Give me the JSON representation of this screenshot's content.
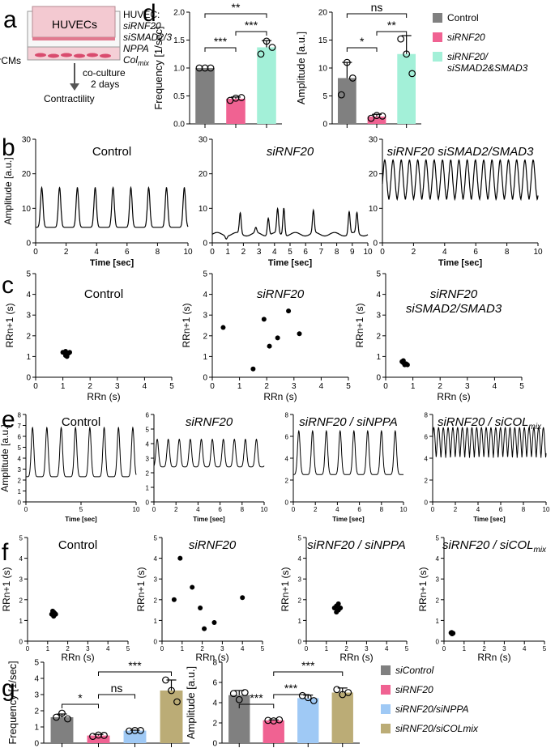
{
  "colors": {
    "control": "#808080",
    "sirnf20": "#f06292",
    "smad": "#a3f0d8",
    "nppa": "#9fc9f5",
    "colmix": "#bbac76"
  },
  "panel_labels": {
    "a": "a",
    "b": "b",
    "c": "c",
    "d": "d",
    "e": "e",
    "f": "f",
    "g": "g"
  },
  "schematic": {
    "cells_label": "HUVECs",
    "rcm_label": "rCMs",
    "huvec_header": "HUVEC:",
    "huvec_items": [
      "siRNF20",
      "siSMAD2/3",
      "NPPA",
      "Col"
    ],
    "col_subscript": "mix",
    "coculture_line1": "co-culture",
    "coculture_line2": "2 days",
    "contractility": "Contractility"
  },
  "chart_data": [
    {
      "id": "d-frequency",
      "type": "bar",
      "categories": [
        "Control",
        "siRNF20",
        "siRNF20/siSMAD2&SMAD3"
      ],
      "values": [
        1.0,
        0.45,
        1.37
      ],
      "errors": [
        0.0,
        0.03,
        0.12
      ],
      "points": [
        [
          1.0,
          1.0,
          1.0
        ],
        [
          0.42,
          0.46,
          0.47
        ],
        [
          1.25,
          1.48,
          1.37
        ]
      ],
      "ylabel": "Frequency [1/sec]",
      "ylim": [
        0,
        2.0
      ],
      "yticks": [
        "0.0",
        "0.5",
        "1.0",
        "1.5",
        "2.0"
      ],
      "significance": [
        {
          "pair": [
            0,
            1
          ],
          "label": "***"
        },
        {
          "pair": [
            1,
            2
          ],
          "label": "***"
        },
        {
          "pair": [
            0,
            2
          ],
          "label": "**"
        }
      ]
    },
    {
      "id": "d-amplitude",
      "type": "bar",
      "categories": [
        "Control",
        "siRNF20",
        "siRNF20/siSMAD2&SMAD3"
      ],
      "values": [
        8.2,
        1.3,
        12.5
      ],
      "errors": [
        2.8,
        0.4,
        3.3
      ],
      "points": [
        [
          5.2,
          11.0,
          8.2
        ],
        [
          1.0,
          1.5,
          1.4
        ],
        [
          15.2,
          12.5,
          9.0
        ]
      ],
      "ylabel": "Amplitude [a.u.]",
      "ylim": [
        0,
        20
      ],
      "yticks": [
        "0",
        "5",
        "10",
        "15",
        "20"
      ],
      "significance": [
        {
          "pair": [
            0,
            1
          ],
          "label": "*"
        },
        {
          "pair": [
            1,
            2
          ],
          "label": "**"
        },
        {
          "pair": [
            0,
            2
          ],
          "label": "ns"
        }
      ]
    },
    {
      "id": "b-control",
      "type": "line",
      "title": "Control",
      "xlabel": "Time [sec]",
      "ylabel": "Amplitude [a.u.]",
      "xlim": [
        0,
        10
      ],
      "ylim": [
        0,
        30
      ],
      "xticks": [
        "0",
        "2",
        "4",
        "6",
        "8",
        "10"
      ],
      "yticks": [
        "0",
        "10",
        "20",
        "30"
      ],
      "wave": {
        "base": 4.5,
        "peak": 16,
        "period": 1.17,
        "phase": 0.4,
        "width": 0.14
      }
    },
    {
      "id": "b-sirnf20",
      "type": "line",
      "title": "siRNF20",
      "xlabel": "Time [sec]",
      "ylabel": "",
      "xlim": [
        0,
        10
      ],
      "ylim": [
        0,
        30
      ],
      "xticks": [
        "0",
        "1",
        "2",
        "3",
        "4",
        "5",
        "6",
        "7",
        "8",
        "9",
        "10"
      ],
      "yticks": [
        "0",
        "10",
        "20",
        "30"
      ],
      "peaks": [
        [
          0.9,
          1.6
        ],
        [
          1.8,
          8.5
        ],
        [
          2.8,
          4.0
        ],
        [
          3.6,
          7.5
        ],
        [
          4.2,
          9.5
        ],
        [
          4.6,
          10.5
        ],
        [
          6.5,
          9.0
        ],
        [
          8.8,
          9.0
        ],
        [
          9.3,
          8.5
        ]
      ],
      "base": 2.5
    },
    {
      "id": "b-smad",
      "type": "line",
      "title": "siRNF20 siSMAD2/SMAD3",
      "xlabel": "Time [sec]",
      "ylabel": "",
      "xlim": [
        0,
        10
      ],
      "ylim": [
        0,
        30
      ],
      "xticks": [
        "0",
        "2",
        "4",
        "6",
        "8",
        "10"
      ],
      "yticks": [
        "0",
        "10",
        "20",
        "30"
      ],
      "wave": {
        "base": 11.5,
        "peak": 24,
        "period": 0.53,
        "phase": 0.15,
        "width": 0.2
      }
    },
    {
      "id": "c-control",
      "type": "scatter",
      "title": "Control",
      "xlabel": "RRn (s)",
      "ylabel": "RRn+1 (s)",
      "xlim": [
        0,
        5
      ],
      "ylim": [
        0,
        5
      ],
      "ticks": [
        "0",
        "1",
        "2",
        "3",
        "4",
        "5"
      ],
      "x": [
        1.0,
        1.1,
        1.2,
        1.1,
        1.25,
        1.15
      ],
      "y": [
        1.2,
        1.05,
        1.15,
        1.25,
        1.2,
        1.0
      ]
    },
    {
      "id": "c-sirnf20",
      "type": "scatter",
      "title": "siRNF20",
      "xlabel": "RRn (s)",
      "ylabel": "RRn+1 (s)",
      "xlim": [
        0,
        5
      ],
      "ylim": [
        0,
        5
      ],
      "ticks": [
        "0",
        "1",
        "2",
        "3",
        "4",
        "5"
      ],
      "x": [
        0.4,
        1.5,
        1.9,
        2.1,
        2.4,
        2.8,
        3.2
      ],
      "y": [
        2.4,
        0.4,
        2.8,
        1.5,
        1.9,
        3.2,
        2.1
      ]
    },
    {
      "id": "c-smad",
      "type": "scatter",
      "title": "siRNF20\nsiSMAD2/SMAD3",
      "xlabel": "RRn (s)",
      "ylabel": "RRn+1 (s)",
      "xlim": [
        0,
        5
      ],
      "ylim": [
        0,
        5
      ],
      "ticks": [
        "0",
        "1",
        "2",
        "3",
        "4",
        "5"
      ],
      "x": [
        0.6,
        0.65,
        0.7,
        0.75,
        0.65,
        0.8
      ],
      "y": [
        0.75,
        0.7,
        0.6,
        0.65,
        0.8,
        0.6
      ]
    },
    {
      "id": "e-control",
      "type": "line",
      "title": "Control",
      "xlabel": "Time [sec]",
      "ylabel": "Amplitude [a.u.]",
      "xlim": [
        0,
        10
      ],
      "ylim": [
        0,
        8
      ],
      "xticks": [
        "0",
        "5",
        "10"
      ],
      "yticks": [
        "0",
        "1",
        "2",
        "3",
        "4",
        "5",
        "6",
        "7",
        "8"
      ],
      "wave": {
        "base": 2.3,
        "peak": 6.8,
        "period": 1.3,
        "phase": 0.6,
        "width": 0.2
      }
    },
    {
      "id": "e-sirnf20",
      "type": "line",
      "title": "siRNF20",
      "xlabel": "Time [sec]",
      "ylabel": "",
      "xlim": [
        0,
        10
      ],
      "ylim": [
        0,
        6
      ],
      "xticks": [
        "0",
        "2",
        "4",
        "6",
        "8",
        "10"
      ],
      "yticks": [
        "0",
        "1",
        "2",
        "3",
        "4",
        "5",
        "6"
      ],
      "wave": {
        "base": 2.4,
        "peak": 4.3,
        "period": 1.0,
        "phase": 0.3,
        "width": 0.2
      }
    },
    {
      "id": "e-nppa",
      "type": "line",
      "title": "siRNF20 / siNPPA",
      "xlabel": "Time [sec]",
      "ylabel": "",
      "xlim": [
        0,
        10
      ],
      "ylim": [
        0,
        8
      ],
      "xticks": [
        "0",
        "2",
        "4",
        "6",
        "8",
        "10"
      ],
      "yticks": [
        "0",
        "2",
        "4",
        "6",
        "8"
      ],
      "wave": {
        "base": 2.5,
        "peak": 6.5,
        "period": 1.25,
        "phase": 0.5,
        "width": 0.2
      }
    },
    {
      "id": "e-colmix",
      "type": "line",
      "title": "siRNF20 / siCOL",
      "title_sub": "mix",
      "xlabel": "Time [sec]",
      "ylabel": "",
      "xlim": [
        0,
        10
      ],
      "ylim": [
        0,
        8
      ],
      "xticks": [
        "0",
        "2",
        "4",
        "6",
        "8",
        "10"
      ],
      "yticks": [
        "0",
        "2",
        "4",
        "6",
        "8"
      ],
      "wave": {
        "base": 3.0,
        "peak": 6.8,
        "period": 0.42,
        "phase": 0.1,
        "width": 0.22
      }
    },
    {
      "id": "f-control",
      "type": "scatter",
      "title": "Control",
      "xlabel": "RRn (s)",
      "ylabel": "RRn+1 (s)",
      "xlim": [
        0,
        5
      ],
      "ylim": [
        0,
        5
      ],
      "ticks": [
        "0",
        "1",
        "2",
        "3",
        "4",
        "5"
      ],
      "x": [
        1.2,
        1.3,
        1.4,
        1.3,
        1.25,
        1.35
      ],
      "y": [
        1.3,
        1.4,
        1.3,
        1.2,
        1.45,
        1.35
      ]
    },
    {
      "id": "f-sirnf20",
      "type": "scatter",
      "title": "siRNF20",
      "xlabel": "RRn (s)",
      "ylabel": "RRn+1 (s)",
      "xlim": [
        0,
        5
      ],
      "ylim": [
        0,
        5
      ],
      "ticks": [
        "0",
        "1",
        "2",
        "3",
        "4",
        "5"
      ],
      "x": [
        0.6,
        0.9,
        1.5,
        1.9,
        2.1,
        2.6,
        4.0
      ],
      "y": [
        2.0,
        4.0,
        2.6,
        1.6,
        0.6,
        0.9,
        2.1
      ]
    },
    {
      "id": "f-nppa",
      "type": "scatter",
      "title": "siRNF20 / siNPPA",
      "xlabel": "RRn (s)",
      "ylabel": "RRn+1 (s)",
      "xlim": [
        0,
        5
      ],
      "ylim": [
        0,
        5
      ],
      "ticks": [
        "0",
        "1",
        "2",
        "3",
        "4",
        "5"
      ],
      "x": [
        1.4,
        1.5,
        1.6,
        1.7,
        1.5,
        1.6
      ],
      "y": [
        1.6,
        1.7,
        1.5,
        1.6,
        1.4,
        1.8
      ]
    },
    {
      "id": "f-colmix",
      "type": "scatter",
      "title": "siRNF20 / siCOL",
      "title_sub": "mix",
      "xlabel": "RRn (s)",
      "ylabel": "RRn+1 (s)",
      "xlim": [
        0,
        5
      ],
      "ylim": [
        0,
        5
      ],
      "ticks": [
        "0",
        "1",
        "2",
        "3",
        "4",
        "5"
      ],
      "x": [
        0.35,
        0.4,
        0.45,
        0.38,
        0.42
      ],
      "y": [
        0.4,
        0.35,
        0.38,
        0.42,
        0.36
      ]
    },
    {
      "id": "g-frequency",
      "type": "bar",
      "categories": [
        "siControl",
        "siRNF20",
        "siRNF20/siNPPA",
        "siRNF20/siCOLmix"
      ],
      "values": [
        1.6,
        0.47,
        0.77,
        3.25
      ],
      "errors": [
        0.2,
        0.07,
        0.03,
        0.65
      ],
      "points": [
        [
          1.6,
          1.85,
          1.5
        ],
        [
          0.42,
          0.5,
          0.48
        ],
        [
          0.75,
          0.78,
          0.78
        ],
        [
          3.9,
          3.25,
          2.55
        ]
      ],
      "ylabel": "Frequency [1/sec]",
      "ylim": [
        0,
        5
      ],
      "yticks": [
        "0",
        "1",
        "2",
        "3",
        "4",
        "5"
      ],
      "significance": [
        {
          "pair": [
            0,
            1
          ],
          "label": "*"
        },
        {
          "pair": [
            1,
            2
          ],
          "label": "ns"
        },
        {
          "pair": [
            1,
            3
          ],
          "label": "***"
        }
      ]
    },
    {
      "id": "g-amplitude",
      "type": "bar",
      "categories": [
        "siControl",
        "siRNF20",
        "siRNF20/siNPPA",
        "siRNF20/siCOLmix"
      ],
      "values": [
        4.75,
        2.25,
        4.45,
        5.0
      ],
      "errors": [
        0.45,
        0.05,
        0.3,
        0.45
      ],
      "points": [
        [
          4.9,
          4.3,
          5.0
        ],
        [
          2.25,
          2.2,
          2.3
        ],
        [
          4.7,
          4.5,
          4.2
        ],
        [
          5.3,
          4.8,
          5.0
        ]
      ],
      "ylabel": "Amplitude [a.u.]",
      "ylim": [
        0,
        8
      ],
      "yticks": [
        "0",
        "2",
        "4",
        "6",
        "8"
      ],
      "significance": [
        {
          "pair": [
            0,
            1
          ],
          "label": "***"
        },
        {
          "pair": [
            1,
            2
          ],
          "label": "***"
        },
        {
          "pair": [
            1,
            3
          ],
          "label": "***"
        }
      ]
    }
  ],
  "legend_d": [
    {
      "label": "Control",
      "color_key": "control"
    },
    {
      "label": "siRNF20",
      "color_key": "sirnf20"
    },
    {
      "label": "siRNF20/\nsiSMAD2&SMAD3",
      "color_key": "smad"
    }
  ],
  "legend_g": [
    {
      "label": "siControl",
      "color_key": "control"
    },
    {
      "label": "siRNF20",
      "color_key": "sirnf20"
    },
    {
      "label": "siRNF20/siNPPA",
      "color_key": "nppa"
    },
    {
      "label": "siRNF20/siCOLmix",
      "color_key": "colmix"
    }
  ]
}
